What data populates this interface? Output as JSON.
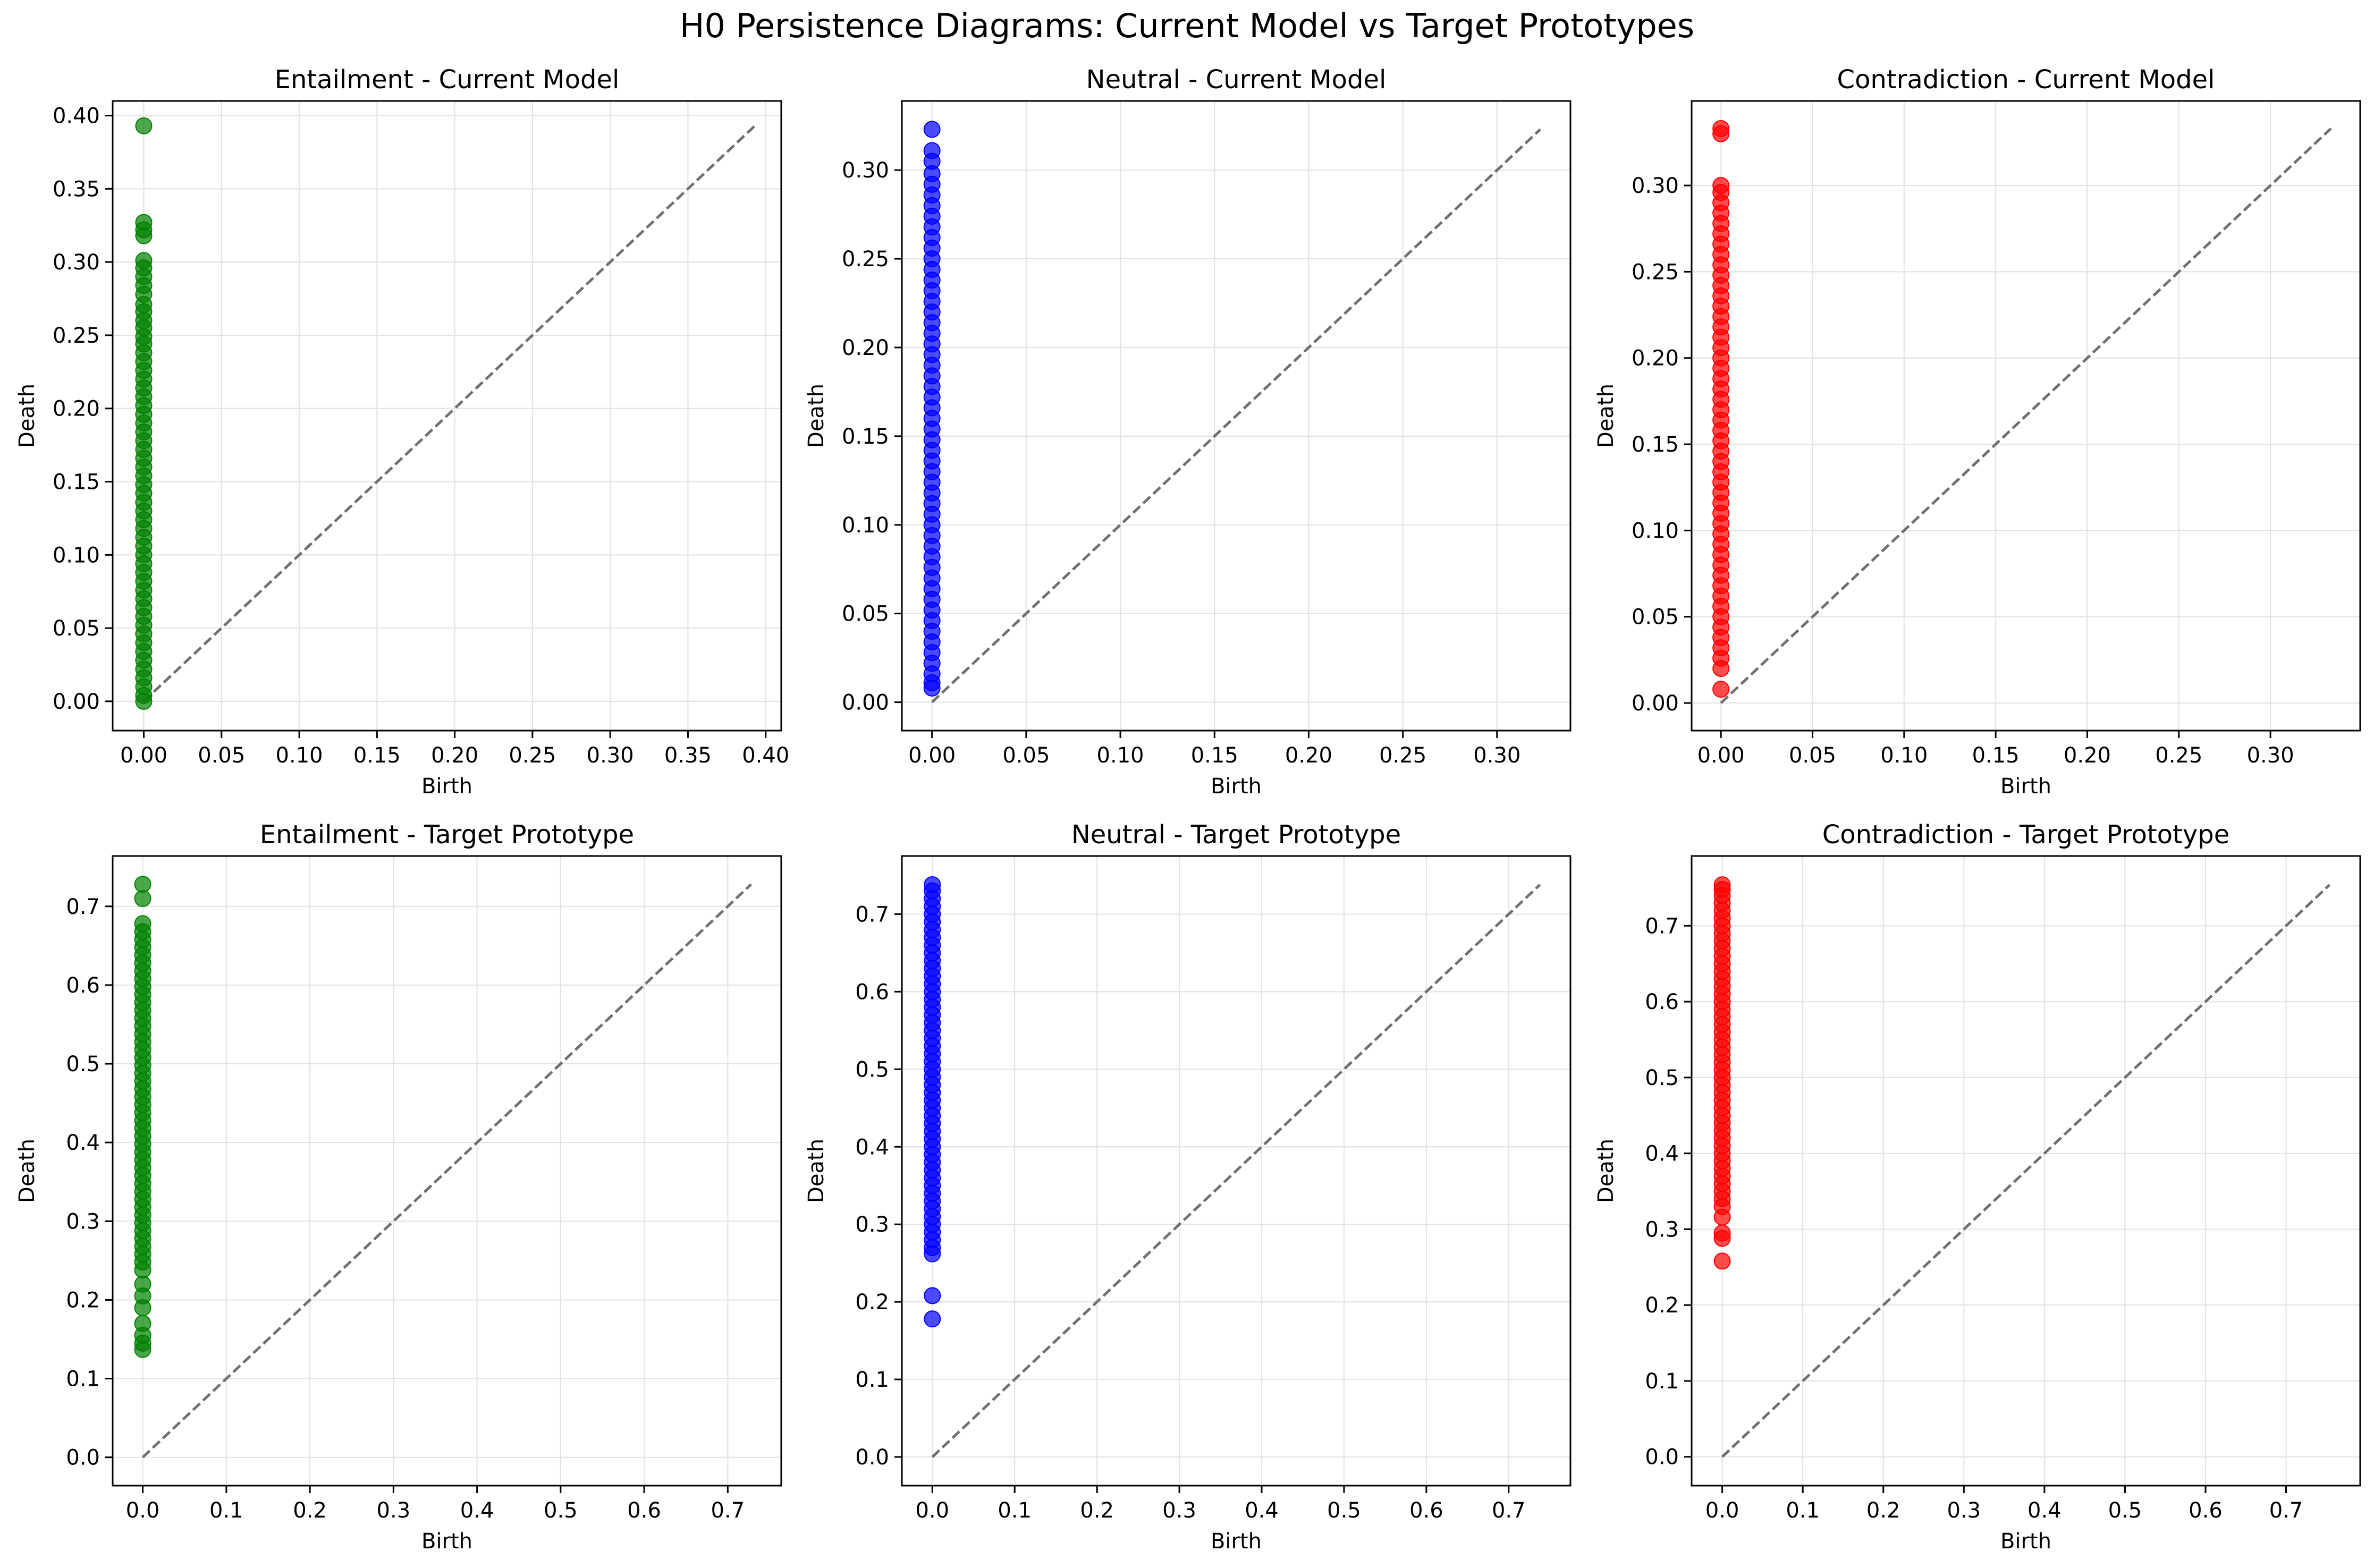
{
  "figure": {
    "title": "H0 Persistence Diagrams: Current Model vs Target Prototypes"
  },
  "style": {
    "grid_color": "#e3e3e3",
    "diagonal_color": "#707070",
    "axis_color": "#000000"
  },
  "chart_data": [
    {
      "type": "scatter",
      "title": "Entailment - Current Model",
      "xlabel": "Birth",
      "ylabel": "Death",
      "color": "#008000",
      "xlim": [
        -0.02,
        0.41
      ],
      "ylim": [
        -0.02,
        0.41
      ],
      "xticks": [
        0.0,
        0.05,
        0.1,
        0.15,
        0.2,
        0.25,
        0.3,
        0.35,
        0.4
      ],
      "yticks": [
        0.0,
        0.05,
        0.1,
        0.15,
        0.2,
        0.25,
        0.3,
        0.35,
        0.4
      ],
      "xtick_labels": [
        "0.00",
        "0.05",
        "0.10",
        "0.15",
        "0.20",
        "0.25",
        "0.30",
        "0.35",
        "0.40"
      ],
      "ytick_labels": [
        "0.00",
        "0.05",
        "0.10",
        "0.15",
        "0.20",
        "0.25",
        "0.30",
        "0.35",
        "0.40"
      ],
      "diagonal_max": 0.393,
      "grid": true,
      "points": {
        "birth": 0.0,
        "death": [
          0.393,
          0.327,
          0.322,
          0.318,
          0.301,
          0.296,
          0.29,
          0.284,
          0.278,
          0.271,
          0.266,
          0.26,
          0.255,
          0.249,
          0.244,
          0.238,
          0.232,
          0.226,
          0.22,
          0.214,
          0.208,
          0.202,
          0.196,
          0.19,
          0.184,
          0.178,
          0.172,
          0.166,
          0.16,
          0.154,
          0.148,
          0.142,
          0.136,
          0.13,
          0.124,
          0.118,
          0.112,
          0.106,
          0.1,
          0.094,
          0.088,
          0.082,
          0.076,
          0.07,
          0.064,
          0.058,
          0.052,
          0.046,
          0.04,
          0.034,
          0.028,
          0.022,
          0.016,
          0.01,
          0.004,
          0.0
        ]
      }
    },
    {
      "type": "scatter",
      "title": "Neutral - Current Model",
      "xlabel": "Birth",
      "ylabel": "Death",
      "color": "#0000ff",
      "xlim": [
        -0.016,
        0.339
      ],
      "ylim": [
        -0.016,
        0.339
      ],
      "xticks": [
        0.0,
        0.05,
        0.1,
        0.15,
        0.2,
        0.25,
        0.3
      ],
      "yticks": [
        0.0,
        0.05,
        0.1,
        0.15,
        0.2,
        0.25,
        0.3
      ],
      "xtick_labels": [
        "0.00",
        "0.05",
        "0.10",
        "0.15",
        "0.20",
        "0.25",
        "0.30"
      ],
      "ytick_labels": [
        "0.00",
        "0.05",
        "0.10",
        "0.15",
        "0.20",
        "0.25",
        "0.30"
      ],
      "diagonal_max": 0.323,
      "grid": true,
      "points": {
        "birth": 0.0,
        "death": [
          0.323,
          0.311,
          0.305,
          0.298,
          0.292,
          0.286,
          0.28,
          0.274,
          0.268,
          0.262,
          0.256,
          0.25,
          0.244,
          0.238,
          0.232,
          0.226,
          0.22,
          0.214,
          0.208,
          0.202,
          0.196,
          0.19,
          0.184,
          0.178,
          0.172,
          0.166,
          0.16,
          0.154,
          0.148,
          0.142,
          0.136,
          0.13,
          0.124,
          0.118,
          0.112,
          0.106,
          0.1,
          0.094,
          0.088,
          0.082,
          0.076,
          0.07,
          0.064,
          0.058,
          0.052,
          0.046,
          0.04,
          0.034,
          0.028,
          0.022,
          0.016,
          0.011,
          0.008
        ]
      }
    },
    {
      "type": "scatter",
      "title": "Contradiction - Current Model",
      "xlabel": "Birth",
      "ylabel": "Death",
      "color": "#ff0000",
      "xlim": [
        -0.016,
        0.349
      ],
      "ylim": [
        -0.016,
        0.349
      ],
      "xticks": [
        0.0,
        0.05,
        0.1,
        0.15,
        0.2,
        0.25,
        0.3
      ],
      "yticks": [
        0.0,
        0.05,
        0.1,
        0.15,
        0.2,
        0.25,
        0.3
      ],
      "xtick_labels": [
        "0.00",
        "0.05",
        "0.10",
        "0.15",
        "0.20",
        "0.25",
        "0.30"
      ],
      "ytick_labels": [
        "0.00",
        "0.05",
        "0.10",
        "0.15",
        "0.20",
        "0.25",
        "0.30"
      ],
      "diagonal_max": 0.333,
      "grid": true,
      "points": {
        "birth": 0.0,
        "death": [
          0.333,
          0.33,
          0.3,
          0.296,
          0.29,
          0.284,
          0.278,
          0.272,
          0.266,
          0.26,
          0.254,
          0.248,
          0.242,
          0.236,
          0.23,
          0.224,
          0.218,
          0.212,
          0.206,
          0.2,
          0.194,
          0.188,
          0.182,
          0.176,
          0.17,
          0.164,
          0.158,
          0.152,
          0.146,
          0.14,
          0.134,
          0.128,
          0.122,
          0.116,
          0.11,
          0.104,
          0.098,
          0.092,
          0.086,
          0.08,
          0.074,
          0.068,
          0.062,
          0.056,
          0.05,
          0.044,
          0.038,
          0.032,
          0.026,
          0.02,
          0.008
        ]
      }
    },
    {
      "type": "scatter",
      "title": "Entailment - Target Prototype",
      "xlabel": "Birth",
      "ylabel": "Death",
      "color": "#008000",
      "xlim": [
        -0.036,
        0.764
      ],
      "ylim": [
        -0.036,
        0.764
      ],
      "xticks": [
        0.0,
        0.1,
        0.2,
        0.3,
        0.4,
        0.5,
        0.6,
        0.7
      ],
      "yticks": [
        0.0,
        0.1,
        0.2,
        0.3,
        0.4,
        0.5,
        0.6,
        0.7
      ],
      "xtick_labels": [
        "0.0",
        "0.1",
        "0.2",
        "0.3",
        "0.4",
        "0.5",
        "0.6",
        "0.7"
      ],
      "ytick_labels": [
        "0.0",
        "0.1",
        "0.2",
        "0.3",
        "0.4",
        "0.5",
        "0.6",
        "0.7"
      ],
      "diagonal_max": 0.728,
      "grid": true,
      "points": {
        "birth": 0.0,
        "death": [
          0.728,
          0.71,
          0.678,
          0.668,
          0.658,
          0.648,
          0.638,
          0.628,
          0.618,
          0.608,
          0.598,
          0.588,
          0.578,
          0.568,
          0.558,
          0.548,
          0.538,
          0.528,
          0.518,
          0.508,
          0.498,
          0.488,
          0.478,
          0.468,
          0.458,
          0.448,
          0.438,
          0.428,
          0.418,
          0.408,
          0.398,
          0.388,
          0.378,
          0.368,
          0.358,
          0.348,
          0.338,
          0.328,
          0.318,
          0.308,
          0.298,
          0.288,
          0.278,
          0.268,
          0.258,
          0.248,
          0.238,
          0.22,
          0.205,
          0.19,
          0.17,
          0.155,
          0.145,
          0.137
        ]
      }
    },
    {
      "type": "scatter",
      "title": "Neutral - Target Prototype",
      "xlabel": "Birth",
      "ylabel": "Death",
      "color": "#0000ff",
      "xlim": [
        -0.037,
        0.775
      ],
      "ylim": [
        -0.037,
        0.775
      ],
      "xticks": [
        0.0,
        0.1,
        0.2,
        0.3,
        0.4,
        0.5,
        0.6,
        0.7
      ],
      "yticks": [
        0.0,
        0.1,
        0.2,
        0.3,
        0.4,
        0.5,
        0.6,
        0.7
      ],
      "xtick_labels": [
        "0.0",
        "0.1",
        "0.2",
        "0.3",
        "0.4",
        "0.5",
        "0.6",
        "0.7"
      ],
      "ytick_labels": [
        "0.0",
        "0.1",
        "0.2",
        "0.3",
        "0.4",
        "0.5",
        "0.6",
        "0.7"
      ],
      "diagonal_max": 0.738,
      "grid": true,
      "points": {
        "birth": 0.0,
        "death": [
          0.738,
          0.73,
          0.72,
          0.71,
          0.7,
          0.69,
          0.68,
          0.67,
          0.66,
          0.65,
          0.64,
          0.63,
          0.62,
          0.61,
          0.6,
          0.59,
          0.58,
          0.57,
          0.56,
          0.55,
          0.54,
          0.53,
          0.52,
          0.51,
          0.5,
          0.49,
          0.48,
          0.47,
          0.46,
          0.45,
          0.44,
          0.43,
          0.42,
          0.41,
          0.4,
          0.39,
          0.38,
          0.37,
          0.36,
          0.35,
          0.34,
          0.33,
          0.32,
          0.31,
          0.3,
          0.29,
          0.28,
          0.27,
          0.262,
          0.208,
          0.178
        ]
      }
    },
    {
      "type": "scatter",
      "title": "Contradiction - Target Prototype",
      "xlabel": "Birth",
      "ylabel": "Death",
      "color": "#ff0000",
      "xlim": [
        -0.038,
        0.792
      ],
      "ylim": [
        -0.038,
        0.792
      ],
      "xticks": [
        0.0,
        0.1,
        0.2,
        0.3,
        0.4,
        0.5,
        0.6,
        0.7
      ],
      "yticks": [
        0.0,
        0.1,
        0.2,
        0.3,
        0.4,
        0.5,
        0.6,
        0.7
      ],
      "xtick_labels": [
        "0.0",
        "0.1",
        "0.2",
        "0.3",
        "0.4",
        "0.5",
        "0.6",
        "0.7"
      ],
      "ytick_labels": [
        "0.0",
        "0.1",
        "0.2",
        "0.3",
        "0.4",
        "0.5",
        "0.6",
        "0.7"
      ],
      "diagonal_max": 0.754,
      "grid": true,
      "points": {
        "birth": 0.0,
        "death": [
          0.754,
          0.748,
          0.74,
          0.73,
          0.72,
          0.71,
          0.7,
          0.69,
          0.68,
          0.67,
          0.66,
          0.65,
          0.64,
          0.63,
          0.62,
          0.61,
          0.6,
          0.59,
          0.58,
          0.57,
          0.56,
          0.55,
          0.54,
          0.53,
          0.52,
          0.51,
          0.5,
          0.49,
          0.48,
          0.47,
          0.46,
          0.45,
          0.44,
          0.43,
          0.42,
          0.41,
          0.4,
          0.39,
          0.38,
          0.37,
          0.36,
          0.35,
          0.34,
          0.33,
          0.316,
          0.295,
          0.288,
          0.258
        ]
      }
    }
  ]
}
